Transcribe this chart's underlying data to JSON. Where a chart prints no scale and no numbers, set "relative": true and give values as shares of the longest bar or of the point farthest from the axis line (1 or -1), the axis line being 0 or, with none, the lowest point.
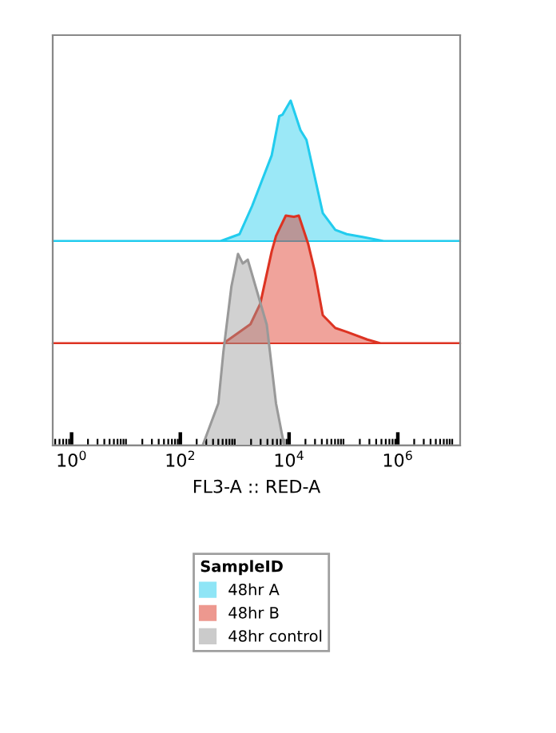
{
  "chart_data": [
    {
      "type": "area",
      "relative": true,
      "log": "x",
      "tick_labels": false,
      "grid": false,
      "xlim": [
        0.45,
        14000000
      ],
      "series": [
        {
          "name": "48hr A",
          "color": "#22ccee",
          "x": [
            0.45,
            550,
            1230,
            2090,
            3390,
            4790,
            6610,
            7590,
            10700,
            16200,
            20900,
            29500,
            41700,
            70800,
            115000,
            224000,
            550000,
            14000000
          ],
          "values": [
            0,
            0,
            0.05,
            0.25,
            0.46,
            0.61,
            0.89,
            0.9,
            1,
            0.79,
            0.72,
            0.46,
            0.2,
            0.08,
            0.05,
            0.03,
            0,
            0
          ]
        }
      ]
    },
    {
      "type": "area",
      "relative": true,
      "log": "x",
      "tick_labels": false,
      "grid": false,
      "xlim": [
        0.45,
        14000000
      ],
      "series": [
        {
          "name": "48hr B",
          "color": "#dd3322",
          "x": [
            0.45,
            620,
            1950,
            2950,
            4790,
            5750,
            8710,
            12300,
            15100,
            22400,
            29500,
            41700,
            70800,
            115000,
            275000,
            480000,
            14000000
          ],
          "values": [
            0,
            0,
            0.15,
            0.31,
            0.72,
            0.84,
            1,
            0.99,
            1,
            0.78,
            0.57,
            0.22,
            0.12,
            0.09,
            0.03,
            0,
            0
          ]
        }
      ]
    },
    {
      "type": "area",
      "relative": true,
      "log": "x",
      "tick_labels": "x",
      "grid": false,
      "xlabel": "FL3-A :: RED-A",
      "legend": "bottom",
      "legend_title": "SampleID",
      "xlim": [
        0.45,
        14000000
      ],
      "xticks": [
        {
          "value": 1,
          "label": "10$^{0}$"
        },
        {
          "value": 100,
          "label": "10$^{2}$"
        },
        {
          "value": 10000,
          "label": "10$^{4}$"
        },
        {
          "value": 1000000,
          "label": "10$^{6}$"
        }
      ],
      "series": [
        {
          "name": "48hr control",
          "color": "#999999",
          "x": [
            0.45,
            257,
            500,
            620,
            870,
            1150,
            1410,
            1740,
            3890,
            5750,
            8130,
            14000000
          ],
          "values": [
            0,
            0,
            0.22,
            0.49,
            0.83,
            1.0,
            0.95,
            0.97,
            0.63,
            0.22,
            0,
            0
          ]
        }
      ]
    }
  ]
}
